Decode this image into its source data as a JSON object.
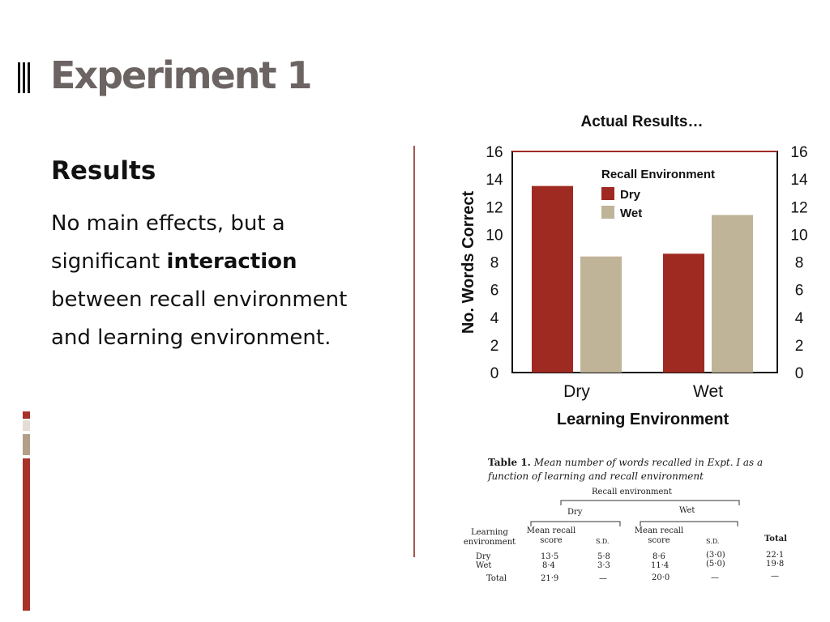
{
  "slide": {
    "title": "Experiment 1",
    "results_heading": "Results",
    "body_parts": [
      "No main effects, but a significant ",
      "interaction",
      " between recall environment and learning environment."
    ]
  },
  "colors": {
    "dry": "#9e2a22",
    "wet": "#bfb398",
    "accent": "#a35a4e"
  },
  "chart_data": {
    "type": "bar",
    "title": "Actual Results…",
    "xlabel": "Learning Environment",
    "ylabel": "No. Words Correct",
    "categories": [
      "Dry",
      "Wet"
    ],
    "legend_title": "Recall Environment",
    "legend_position": "top-right",
    "series": [
      {
        "name": "Dry",
        "values": [
          13.5,
          8.6
        ]
      },
      {
        "name": "Wet",
        "values": [
          8.4,
          11.4
        ]
      }
    ],
    "ylim": [
      0,
      16
    ],
    "yticks": [
      "0",
      "2",
      "4",
      "6",
      "8",
      "10",
      "12",
      "14",
      "16"
    ],
    "grid": false
  },
  "table": {
    "caption_label": "Table 1.",
    "caption_text": "Mean number of words recalled in Expt. I as a function of learning and recall environment",
    "group_header": "Recall environment",
    "sub_dry": "Dry",
    "sub_wet": "Wet",
    "col_learning": "Learning environment",
    "col_mean": "Mean recall score",
    "col_sd": "S.D.",
    "col_total": "Total",
    "rows": [
      {
        "label": "Dry",
        "dry_mean": "13·5",
        "dry_sd": "5·8",
        "wet_mean": "8·6",
        "wet_sd": "(3·0)",
        "total": "22·1"
      },
      {
        "label": "Wet",
        "dry_mean": "8·4",
        "dry_sd": "3·3",
        "wet_mean": "11·4",
        "wet_sd": "(5·0)",
        "total": "19·8"
      }
    ],
    "total_row": {
      "label": "Total",
      "dry_mean": "21·9",
      "dry_sd": "—",
      "wet_mean": "20·0",
      "wet_sd": "—",
      "total": "—"
    }
  }
}
